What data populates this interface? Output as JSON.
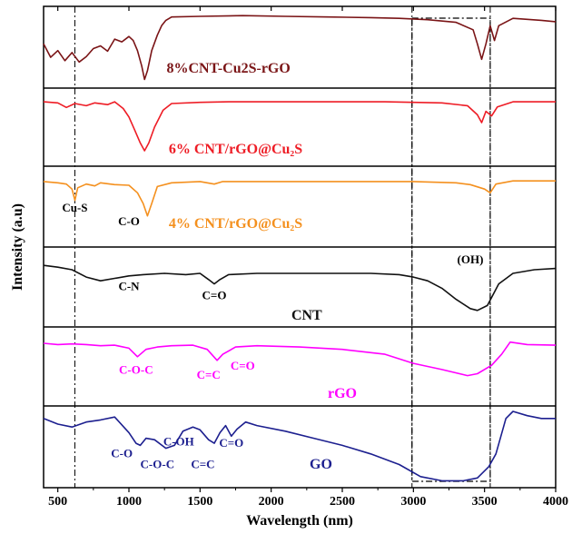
{
  "chart_data": {
    "type": "line",
    "stacked_panels": true,
    "xlabel": "Wavelength (nm)",
    "ylabel": "Intensity (a.u)",
    "xlim": [
      400,
      4000
    ],
    "xticks": [
      500,
      1000,
      1500,
      2000,
      2500,
      3000,
      3500,
      4000
    ],
    "ylim": [
      0,
      1
    ],
    "grid": false,
    "legend": "none",
    "reference_lines_x": [
      620,
      2990,
      3540
    ],
    "highlight_box_x": [
      2990,
      3540
    ],
    "series": [
      {
        "name": "8%CNT-Cu2S-rGO",
        "color": "#7a1416",
        "label_x": 1700,
        "points": [
          [
            400,
            0.55
          ],
          [
            450,
            0.35
          ],
          [
            500,
            0.45
          ],
          [
            550,
            0.3
          ],
          [
            600,
            0.42
          ],
          [
            650,
            0.28
          ],
          [
            700,
            0.36
          ],
          [
            750,
            0.48
          ],
          [
            800,
            0.52
          ],
          [
            850,
            0.44
          ],
          [
            900,
            0.62
          ],
          [
            950,
            0.58
          ],
          [
            1000,
            0.66
          ],
          [
            1030,
            0.6
          ],
          [
            1060,
            0.45
          ],
          [
            1090,
            0.22
          ],
          [
            1110,
            0.02
          ],
          [
            1130,
            0.15
          ],
          [
            1160,
            0.45
          ],
          [
            1200,
            0.68
          ],
          [
            1230,
            0.82
          ],
          [
            1260,
            0.9
          ],
          [
            1300,
            0.95
          ],
          [
            1500,
            0.96
          ],
          [
            1800,
            0.97
          ],
          [
            2100,
            0.96
          ],
          [
            2400,
            0.95
          ],
          [
            2700,
            0.94
          ],
          [
            2900,
            0.93
          ],
          [
            3100,
            0.91
          ],
          [
            3300,
            0.87
          ],
          [
            3420,
            0.76
          ],
          [
            3450,
            0.55
          ],
          [
            3480,
            0.32
          ],
          [
            3510,
            0.55
          ],
          [
            3540,
            0.82
          ],
          [
            3570,
            0.6
          ],
          [
            3600,
            0.82
          ],
          [
            3700,
            0.93
          ],
          [
            3900,
            0.9
          ],
          [
            4000,
            0.88
          ]
        ]
      },
      {
        "name": "6% CNT/rGO@Cu₂S",
        "color": "#ee1c25",
        "label_x": 1750,
        "points": [
          [
            400,
            0.95
          ],
          [
            500,
            0.93
          ],
          [
            560,
            0.85
          ],
          [
            620,
            0.92
          ],
          [
            700,
            0.88
          ],
          [
            760,
            0.93
          ],
          [
            850,
            0.9
          ],
          [
            900,
            0.95
          ],
          [
            960,
            0.83
          ],
          [
            1000,
            0.68
          ],
          [
            1040,
            0.45
          ],
          [
            1080,
            0.22
          ],
          [
            1110,
            0.08
          ],
          [
            1140,
            0.22
          ],
          [
            1180,
            0.5
          ],
          [
            1240,
            0.8
          ],
          [
            1300,
            0.92
          ],
          [
            1500,
            0.94
          ],
          [
            1700,
            0.95
          ],
          [
            2000,
            0.95
          ],
          [
            2400,
            0.95
          ],
          [
            2800,
            0.95
          ],
          [
            3000,
            0.94
          ],
          [
            3200,
            0.93
          ],
          [
            3380,
            0.88
          ],
          [
            3450,
            0.72
          ],
          [
            3480,
            0.58
          ],
          [
            3510,
            0.78
          ],
          [
            3550,
            0.7
          ],
          [
            3590,
            0.86
          ],
          [
            3700,
            0.95
          ],
          [
            4000,
            0.95
          ]
        ]
      },
      {
        "name": "4% CNT/rGO@Cu₂S",
        "color": "#f4901e",
        "label_x": 1750,
        "points": [
          [
            400,
            0.9
          ],
          [
            500,
            0.88
          ],
          [
            560,
            0.86
          ],
          [
            600,
            0.78
          ],
          [
            620,
            0.6
          ],
          [
            640,
            0.8
          ],
          [
            700,
            0.86
          ],
          [
            760,
            0.83
          ],
          [
            800,
            0.88
          ],
          [
            900,
            0.85
          ],
          [
            1000,
            0.84
          ],
          [
            1060,
            0.72
          ],
          [
            1100,
            0.55
          ],
          [
            1130,
            0.35
          ],
          [
            1160,
            0.55
          ],
          [
            1200,
            0.82
          ],
          [
            1300,
            0.88
          ],
          [
            1500,
            0.9
          ],
          [
            1600,
            0.86
          ],
          [
            1660,
            0.9
          ],
          [
            2000,
            0.9
          ],
          [
            2500,
            0.9
          ],
          [
            3000,
            0.9
          ],
          [
            3300,
            0.88
          ],
          [
            3400,
            0.85
          ],
          [
            3500,
            0.78
          ],
          [
            3540,
            0.72
          ],
          [
            3580,
            0.86
          ],
          [
            3700,
            0.91
          ],
          [
            4000,
            0.91
          ]
        ]
      },
      {
        "name": "CNT",
        "color": "#111111",
        "label_x": 2250,
        "points": [
          [
            400,
            0.85
          ],
          [
            500,
            0.82
          ],
          [
            600,
            0.78
          ],
          [
            700,
            0.66
          ],
          [
            800,
            0.6
          ],
          [
            900,
            0.64
          ],
          [
            1000,
            0.68
          ],
          [
            1100,
            0.7
          ],
          [
            1250,
            0.72
          ],
          [
            1400,
            0.7
          ],
          [
            1500,
            0.72
          ],
          [
            1560,
            0.62
          ],
          [
            1600,
            0.55
          ],
          [
            1640,
            0.62
          ],
          [
            1700,
            0.7
          ],
          [
            1900,
            0.72
          ],
          [
            2300,
            0.72
          ],
          [
            2700,
            0.72
          ],
          [
            2900,
            0.7
          ],
          [
            3000,
            0.66
          ],
          [
            3100,
            0.6
          ],
          [
            3200,
            0.48
          ],
          [
            3300,
            0.3
          ],
          [
            3400,
            0.15
          ],
          [
            3450,
            0.12
          ],
          [
            3520,
            0.2
          ],
          [
            3600,
            0.55
          ],
          [
            3700,
            0.72
          ],
          [
            3850,
            0.78
          ],
          [
            4000,
            0.8
          ]
        ]
      },
      {
        "name": "rGO",
        "color": "#ff00ff",
        "label_x": 2500,
        "points": [
          [
            400,
            0.88
          ],
          [
            500,
            0.86
          ],
          [
            600,
            0.87
          ],
          [
            700,
            0.86
          ],
          [
            800,
            0.84
          ],
          [
            900,
            0.85
          ],
          [
            1000,
            0.8
          ],
          [
            1060,
            0.66
          ],
          [
            1120,
            0.78
          ],
          [
            1200,
            0.82
          ],
          [
            1300,
            0.84
          ],
          [
            1450,
            0.85
          ],
          [
            1550,
            0.78
          ],
          [
            1620,
            0.6
          ],
          [
            1660,
            0.7
          ],
          [
            1750,
            0.82
          ],
          [
            1900,
            0.84
          ],
          [
            2200,
            0.82
          ],
          [
            2500,
            0.78
          ],
          [
            2800,
            0.7
          ],
          [
            3000,
            0.55
          ],
          [
            3200,
            0.45
          ],
          [
            3380,
            0.35
          ],
          [
            3450,
            0.38
          ],
          [
            3550,
            0.52
          ],
          [
            3620,
            0.7
          ],
          [
            3680,
            0.9
          ],
          [
            3800,
            0.86
          ],
          [
            4000,
            0.85
          ]
        ]
      },
      {
        "name": "GO",
        "color": "#1c1f8f",
        "label_x": 2350,
        "points": [
          [
            400,
            0.9
          ],
          [
            500,
            0.82
          ],
          [
            600,
            0.78
          ],
          [
            700,
            0.85
          ],
          [
            800,
            0.88
          ],
          [
            900,
            0.92
          ],
          [
            1000,
            0.7
          ],
          [
            1050,
            0.55
          ],
          [
            1080,
            0.52
          ],
          [
            1120,
            0.62
          ],
          [
            1180,
            0.6
          ],
          [
            1260,
            0.48
          ],
          [
            1320,
            0.52
          ],
          [
            1380,
            0.72
          ],
          [
            1450,
            0.78
          ],
          [
            1500,
            0.74
          ],
          [
            1560,
            0.6
          ],
          [
            1600,
            0.55
          ],
          [
            1640,
            0.7
          ],
          [
            1680,
            0.8
          ],
          [
            1720,
            0.65
          ],
          [
            1760,
            0.75
          ],
          [
            1820,
            0.85
          ],
          [
            1900,
            0.8
          ],
          [
            2100,
            0.72
          ],
          [
            2300,
            0.62
          ],
          [
            2500,
            0.52
          ],
          [
            2700,
            0.4
          ],
          [
            2900,
            0.25
          ],
          [
            3050,
            0.08
          ],
          [
            3200,
            0.02
          ],
          [
            3350,
            0.02
          ],
          [
            3450,
            0.06
          ],
          [
            3530,
            0.22
          ],
          [
            3580,
            0.4
          ],
          [
            3650,
            0.9
          ],
          [
            3700,
            1.0
          ],
          [
            3800,
            0.94
          ],
          [
            3900,
            0.9
          ],
          [
            4000,
            0.9
          ]
        ]
      }
    ],
    "annotations": [
      {
        "panel": 2,
        "x": 620,
        "y": 0.42,
        "text": "Cu-S"
      },
      {
        "panel": 2,
        "x": 1000,
        "y": 0.2,
        "text": "C-O"
      },
      {
        "panel": 3,
        "x": 1000,
        "y": 0.45,
        "text": "C-N"
      },
      {
        "panel": 3,
        "x": 1600,
        "y": 0.3,
        "text": "C=O"
      },
      {
        "panel": 3,
        "x": 3400,
        "y": 0.88,
        "text": "(OH)"
      },
      {
        "panel": 4,
        "x": 1050,
        "y": 0.38,
        "text": "C-O-C"
      },
      {
        "panel": 4,
        "x": 1560,
        "y": 0.3,
        "text": "C=C"
      },
      {
        "panel": 4,
        "x": 1800,
        "y": 0.45,
        "text": "C=O"
      },
      {
        "panel": 5,
        "x": 1350,
        "y": 0.52,
        "text": "C-OH"
      },
      {
        "panel": 5,
        "x": 950,
        "y": 0.35,
        "text": "C-O"
      },
      {
        "panel": 5,
        "x": 1200,
        "y": 0.2,
        "text": "C-O-C"
      },
      {
        "panel": 5,
        "x": 1520,
        "y": 0.2,
        "text": "C=C"
      },
      {
        "panel": 5,
        "x": 1720,
        "y": 0.5,
        "text": "C=O"
      }
    ]
  }
}
